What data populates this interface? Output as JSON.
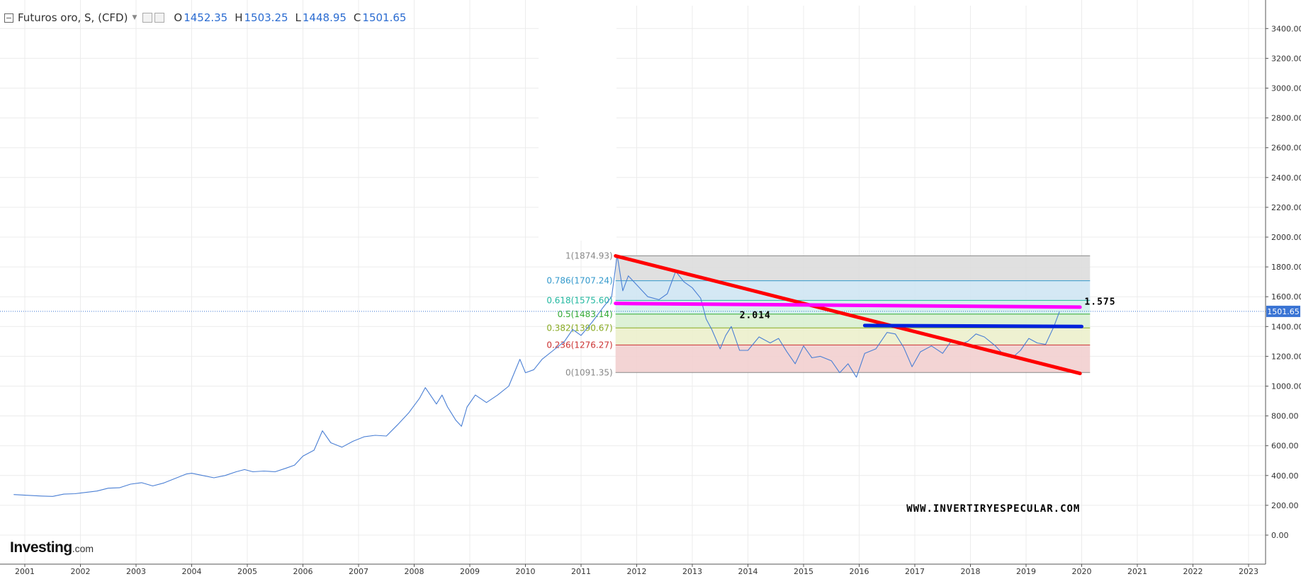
{
  "header": {
    "title": "Futuros oro, S, (CFD)",
    "o_label": "O",
    "o_value": "1452.35",
    "h_label": "H",
    "h_value": "1503.25",
    "l_label": "L",
    "l_value": "1448.95",
    "c_label": "C",
    "c_value": "1501.65"
  },
  "logo": {
    "bold": "Investing",
    "suffix": ".com"
  },
  "colors": {
    "price_line": "#4a7fd4",
    "trend_line": "#ff0000",
    "magenta_line": "#ff00ff",
    "blue_line": "#0022dd",
    "current_price_bg": "#3a74d4"
  },
  "chart_data": {
    "type": "line",
    "title": "Futuros oro, S, (CFD)",
    "xlabel": "",
    "ylabel": "",
    "x_ticks": [
      "2001",
      "2002",
      "2003",
      "2004",
      "2005",
      "2006",
      "2007",
      "2008",
      "2009",
      "2010",
      "2011",
      "2012",
      "2013",
      "2014",
      "2015",
      "2016",
      "2017",
      "2018",
      "2019",
      "2020",
      "2021",
      "2022",
      "2023"
    ],
    "y_ticks": [
      "0.00",
      "200.00",
      "400.00",
      "600.00",
      "800.00",
      "1000.00",
      "1200.00",
      "1400.00",
      "1600.00",
      "1800.00",
      "2000.00",
      "2200.00",
      "2400.00",
      "2600.00",
      "2800.00",
      "3000.00",
      "3200.00",
      "3400.00"
    ],
    "ylim": [
      -30,
      3500
    ],
    "grid": true,
    "current_price": "1501.65",
    "series": [
      {
        "points": [
          [
            2000.8,
            272
          ],
          [
            2001.0,
            268
          ],
          [
            2001.3,
            262
          ],
          [
            2001.5,
            260
          ],
          [
            2001.7,
            275
          ],
          [
            2001.9,
            278
          ],
          [
            2002.0,
            282
          ],
          [
            2002.3,
            296
          ],
          [
            2002.5,
            315
          ],
          [
            2002.7,
            318
          ],
          [
            2002.9,
            342
          ],
          [
            2003.1,
            352
          ],
          [
            2003.3,
            330
          ],
          [
            2003.5,
            350
          ],
          [
            2003.7,
            380
          ],
          [
            2003.9,
            410
          ],
          [
            2004.0,
            415
          ],
          [
            2004.2,
            400
          ],
          [
            2004.4,
            385
          ],
          [
            2004.6,
            400
          ],
          [
            2004.8,
            425
          ],
          [
            2004.95,
            440
          ],
          [
            2005.1,
            425
          ],
          [
            2005.3,
            430
          ],
          [
            2005.5,
            425
          ],
          [
            2005.7,
            450
          ],
          [
            2005.85,
            470
          ],
          [
            2006.0,
            530
          ],
          [
            2006.2,
            570
          ],
          [
            2006.35,
            700
          ],
          [
            2006.5,
            620
          ],
          [
            2006.7,
            590
          ],
          [
            2006.9,
            630
          ],
          [
            2007.1,
            660
          ],
          [
            2007.3,
            670
          ],
          [
            2007.5,
            665
          ],
          [
            2007.7,
            740
          ],
          [
            2007.9,
            820
          ],
          [
            2008.1,
            920
          ],
          [
            2008.2,
            990
          ],
          [
            2008.4,
            880
          ],
          [
            2008.5,
            940
          ],
          [
            2008.6,
            860
          ],
          [
            2008.75,
            770
          ],
          [
            2008.85,
            730
          ],
          [
            2008.95,
            860
          ],
          [
            2009.1,
            940
          ],
          [
            2009.3,
            890
          ],
          [
            2009.5,
            940
          ],
          [
            2009.7,
            1000
          ],
          [
            2009.9,
            1180
          ],
          [
            2010.0,
            1090
          ],
          [
            2010.15,
            1110
          ],
          [
            2010.3,
            1180
          ],
          [
            2010.5,
            1240
          ],
          [
            2010.7,
            1300
          ],
          [
            2010.85,
            1380
          ],
          [
            2011.0,
            1340
          ],
          [
            2011.2,
            1430
          ],
          [
            2011.4,
            1530
          ],
          [
            2011.55,
            1600
          ],
          [
            2011.65,
            1880
          ],
          [
            2011.75,
            1640
          ],
          [
            2011.85,
            1740
          ],
          [
            2012.0,
            1680
          ],
          [
            2012.2,
            1600
          ],
          [
            2012.4,
            1580
          ],
          [
            2012.55,
            1620
          ],
          [
            2012.7,
            1770
          ],
          [
            2012.85,
            1700
          ],
          [
            2013.0,
            1660
          ],
          [
            2013.15,
            1590
          ],
          [
            2013.25,
            1450
          ],
          [
            2013.35,
            1380
          ],
          [
            2013.5,
            1250
          ],
          [
            2013.6,
            1340
          ],
          [
            2013.7,
            1400
          ],
          [
            2013.85,
            1240
          ],
          [
            2014.0,
            1240
          ],
          [
            2014.2,
            1330
          ],
          [
            2014.4,
            1290
          ],
          [
            2014.55,
            1320
          ],
          [
            2014.7,
            1230
          ],
          [
            2014.85,
            1150
          ],
          [
            2015.0,
            1270
          ],
          [
            2015.15,
            1190
          ],
          [
            2015.3,
            1200
          ],
          [
            2015.5,
            1170
          ],
          [
            2015.65,
            1090
          ],
          [
            2015.8,
            1150
          ],
          [
            2015.95,
            1060
          ],
          [
            2016.1,
            1220
          ],
          [
            2016.3,
            1250
          ],
          [
            2016.5,
            1360
          ],
          [
            2016.65,
            1350
          ],
          [
            2016.8,
            1260
          ],
          [
            2016.95,
            1130
          ],
          [
            2017.1,
            1230
          ],
          [
            2017.3,
            1270
          ],
          [
            2017.5,
            1220
          ],
          [
            2017.65,
            1300
          ],
          [
            2017.8,
            1280
          ],
          [
            2017.95,
            1300
          ],
          [
            2018.1,
            1350
          ],
          [
            2018.25,
            1330
          ],
          [
            2018.45,
            1270
          ],
          [
            2018.6,
            1210
          ],
          [
            2018.75,
            1190
          ],
          [
            2018.9,
            1240
          ],
          [
            2019.05,
            1320
          ],
          [
            2019.2,
            1290
          ],
          [
            2019.35,
            1280
          ],
          [
            2019.5,
            1400
          ],
          [
            2019.6,
            1500
          ]
        ]
      }
    ],
    "fibonacci": {
      "levels": [
        {
          "ratio_label": "1(1874.93)",
          "value": 1874.93,
          "color": "#888888",
          "fill": "#dddddd"
        },
        {
          "ratio_label": "0.786(1707.24)",
          "value": 1707.24,
          "color": "#3399cc",
          "fill": "#cfe6f3"
        },
        {
          "ratio_label": "0.618(1575.60)",
          "value": 1575.6,
          "color": "#22b8a0",
          "fill": "#d3f1ec"
        },
        {
          "ratio_label": "0.5(1483.14)",
          "value": 1483.14,
          "color": "#33aa33",
          "fill": "#d9efd2"
        },
        {
          "ratio_label": "0.382(1390.67)",
          "value": 1390.67,
          "color": "#88aa22",
          "fill": "#ecf0cc"
        },
        {
          "ratio_label": "0.236(1276.27)",
          "value": 1276.27,
          "color": "#cc3333",
          "fill": "#f2cfcf"
        },
        {
          "ratio_label": "0(1091.35)",
          "value": 1091.35,
          "color": "#888888",
          "fill": "none"
        }
      ],
      "x_start": 2011.62,
      "x_end": 2020.15
    },
    "drawn_lines": [
      {
        "name": "red-trendline",
        "color": "#ff0000",
        "from": [
          2011.62,
          1874
        ],
        "to": [
          2019.97,
          1085
        ]
      },
      {
        "name": "magenta-line",
        "color": "#ff00ff",
        "from": [
          2011.62,
          1555
        ],
        "to": [
          2019.97,
          1530
        ]
      },
      {
        "name": "blue-line",
        "color": "#0022dd",
        "from": [
          2016.1,
          1407
        ],
        "to": [
          2020.0,
          1400
        ]
      }
    ],
    "annotations": [
      {
        "text": "1.575",
        "x": 2020.05,
        "y": 1570
      },
      {
        "text": "2.014",
        "x": 2013.85,
        "y": 1480
      },
      {
        "text": "WWW.INVERTIRYESPECULAR.COM",
        "x": 2016.85,
        "y": 180
      }
    ]
  }
}
